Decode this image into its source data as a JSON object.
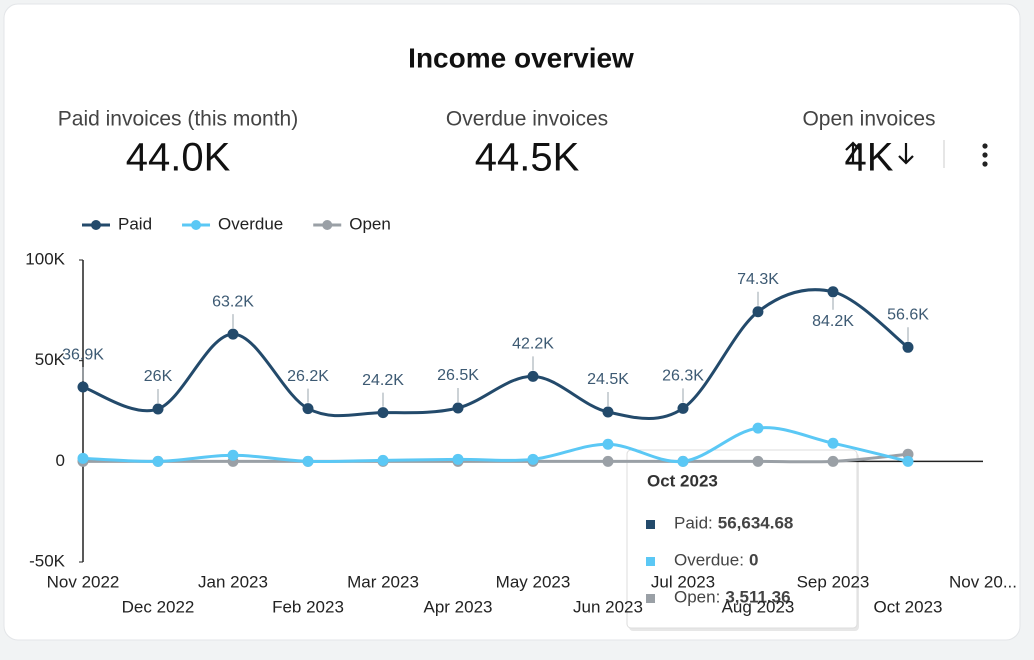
{
  "header": {
    "title": "Income overview"
  },
  "kpis": [
    {
      "label": "Paid invoices (this month)",
      "value": "44.0K"
    },
    {
      "label": "Overdue invoices",
      "value": "44.5K"
    },
    {
      "label": "Open invoices",
      "value": "4K"
    }
  ],
  "chart_data": {
    "type": "line",
    "categories": [
      "Nov 2022",
      "Dec 2022",
      "Jan 2023",
      "Feb 2023",
      "Mar 2023",
      "Apr 2023",
      "May 2023",
      "Jun 2023",
      "Jul 2023",
      "Aug 2023",
      "Sep 2023",
      "Oct 2023",
      "Nov 20..."
    ],
    "series": [
      {
        "name": "Paid",
        "color": "#234a6b",
        "values": [
          36900,
          26000,
          63200,
          26200,
          24200,
          26500,
          42200,
          24500,
          26300,
          74300,
          84200,
          56634.68,
          null
        ],
        "value_labels": [
          "36.9K",
          "26K",
          "63.2K",
          "26.2K",
          "24.2K",
          "26.5K",
          "42.2K",
          "24.5K",
          "26.3K",
          "74.3K",
          "84.2K",
          "56.6K",
          null
        ]
      },
      {
        "name": "Overdue",
        "color": "#5bc8f5",
        "values": [
          1500,
          0,
          3000,
          0,
          500,
          1000,
          1000,
          8500,
          0,
          16500,
          9000,
          0,
          null
        ]
      },
      {
        "name": "Open",
        "color": "#9aa0a6",
        "values": [
          0,
          0,
          0,
          0,
          0,
          0,
          0,
          0,
          0,
          0,
          0,
          3511.36,
          null
        ]
      }
    ],
    "ylim": [
      -50000,
      100000
    ],
    "yticks": [
      {
        "value": -50000,
        "label": "-50K"
      },
      {
        "value": 0,
        "label": "0"
      },
      {
        "value": 50000,
        "label": "50K"
      },
      {
        "value": 100000,
        "label": "100K"
      }
    ],
    "legend": "top-left",
    "tooltip": {
      "title": "Oct 2023",
      "items": [
        {
          "label": "Paid:",
          "value": "56,634.68"
        },
        {
          "label": "Overdue:",
          "value": "0"
        },
        {
          "label": "Open:",
          "value": "3,511.36"
        }
      ]
    }
  }
}
